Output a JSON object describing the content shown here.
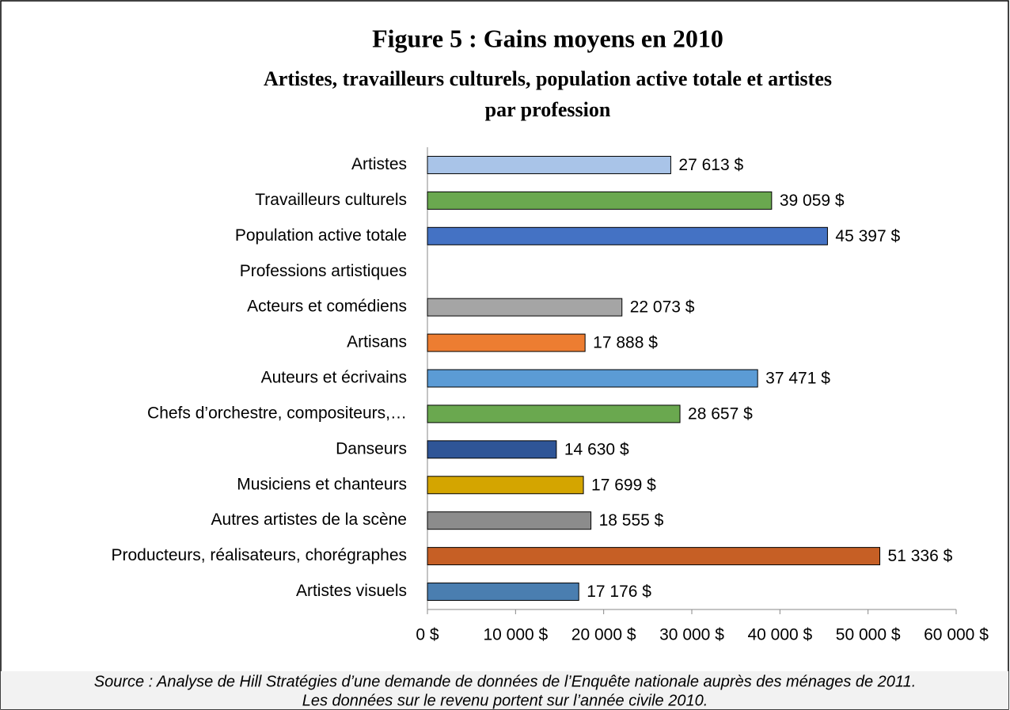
{
  "chart_data": {
    "type": "bar",
    "orientation": "horizontal",
    "title": "Figure 5 : Gains moyens en 2010",
    "subtitle": [
      "Artistes, travailleurs culturels, population active totale et artistes",
      "par profession"
    ],
    "categories": [
      "Artistes",
      "Travailleurs culturels",
      "Population active totale",
      "Professions artistiques",
      "Acteurs et comédiens",
      "Artisans",
      "Auteurs et écrivains",
      "Chefs d’orchestre, compositeurs,…",
      "Danseurs",
      "Musiciens et chanteurs",
      "Autres artistes de la scène",
      "Producteurs, réalisateurs, chorégraphes",
      "Artistes visuels"
    ],
    "values": [
      27613,
      39059,
      45397,
      null,
      22073,
      17888,
      37471,
      28657,
      14630,
      17699,
      18555,
      51336,
      17176
    ],
    "value_labels": [
      "27 613 $",
      "39 059 $",
      "45 397 $",
      null,
      "22 073 $",
      "17 888 $",
      "37 471 $",
      "28 657 $",
      "14 630 $",
      "17 699 $",
      "18 555 $",
      "51 336 $",
      "17 176 $"
    ],
    "colors": [
      "#a9c4e8",
      "#6aa84f",
      "#4472c4",
      null,
      "#a5a5a5",
      "#ed7d31",
      "#5b9bd5",
      "#6aa84f",
      "#2f5597",
      "#d4a500",
      "#8c8c8c",
      "#c65f25",
      "#4a7eb0"
    ],
    "xlim": [
      0,
      60000
    ],
    "xticks": [
      {
        "value": 0,
        "label": "0 $"
      },
      {
        "value": 10000,
        "label": "10 000 $"
      },
      {
        "value": 20000,
        "label": "20 000 $"
      },
      {
        "value": 30000,
        "label": "30 000 $"
      },
      {
        "value": 40000,
        "label": "40 000 $"
      },
      {
        "value": 50000,
        "label": "50 000 $"
      },
      {
        "value": 60000,
        "label": "60 000 $"
      }
    ],
    "source": [
      "Source : Analyse de Hill Stratégies d’une demande de données de l’Enquête nationale auprès des ménages de 2011.",
      "Les données sur le revenu portent sur l’année civile 2010."
    ]
  }
}
